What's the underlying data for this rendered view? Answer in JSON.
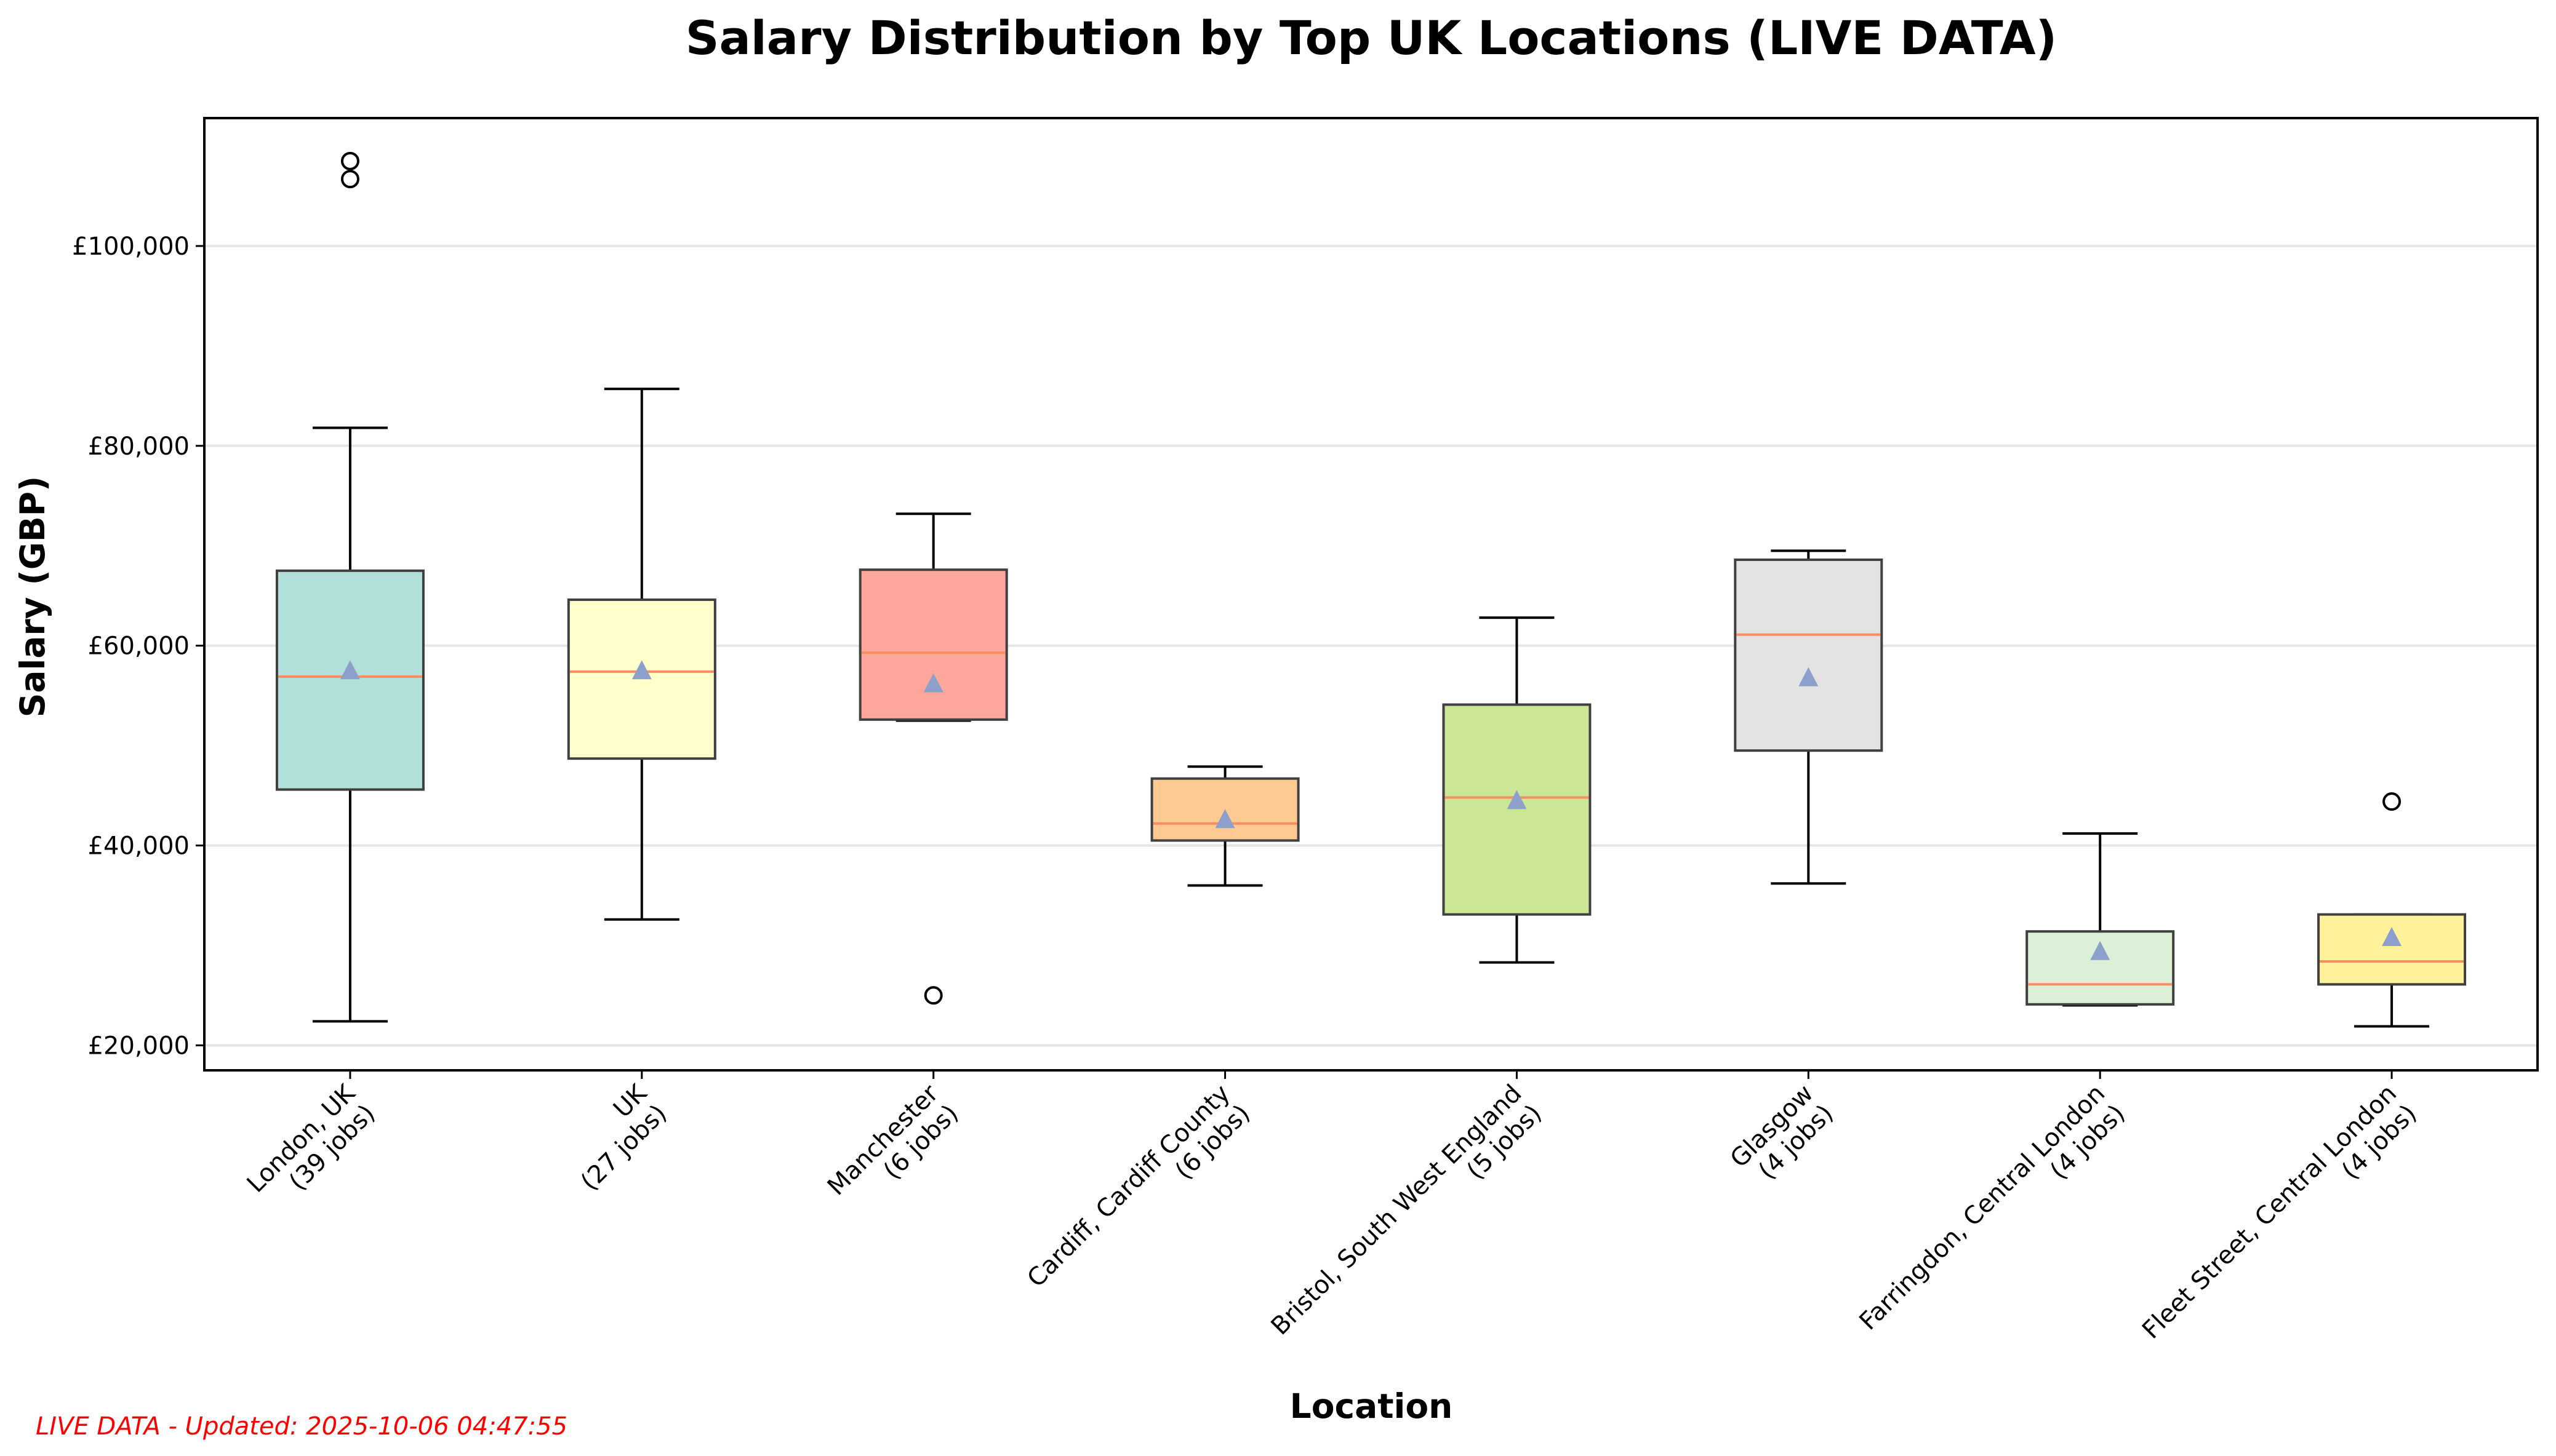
{
  "chart_data": {
    "type": "box",
    "title": "Salary Distribution by Top UK Locations (LIVE DATA)",
    "xlabel": "Location",
    "ylabel": "Salary (GBP)",
    "ylim": [
      17500,
      112800
    ],
    "yticks": [
      20000,
      40000,
      60000,
      80000,
      100000
    ],
    "ytick_labels": [
      "£20,000",
      "£40,000",
      "£60,000",
      "£80,000",
      "£100,000"
    ],
    "grid": "y",
    "mean_marker": "triangle",
    "colors": {
      "median": "#fc8d62",
      "mean": "#8da0cb",
      "box_edge": "#404040",
      "grid": "#e5e5e5",
      "footer": "#ff0000"
    },
    "series": [
      {
        "name": "London, UK",
        "jobs_label": "(39 jobs)",
        "whislo": 22400,
        "q1": 45600,
        "med": 56900,
        "mean": 57500,
        "q3": 67500,
        "whishi": 81800,
        "fliers": [
          106700,
          108500
        ],
        "color": "#b1e0da"
      },
      {
        "name": "UK",
        "jobs_label": "(27 jobs)",
        "whislo": 32600,
        "q1": 48700,
        "med": 57400,
        "mean": 57500,
        "q3": 64600,
        "whishi": 85700,
        "fliers": [],
        "color": "#ffffcc"
      },
      {
        "name": "Manchester",
        "jobs_label": "(6 jobs)",
        "whislo": 52500,
        "q1": 52600,
        "med": 59300,
        "mean": 56200,
        "q3": 67600,
        "whishi": 73200,
        "fliers": [
          25000
        ],
        "color": "#fca69c"
      },
      {
        "name": "Cardiff, Cardiff County",
        "jobs_label": "(6 jobs)",
        "whislo": 36000,
        "q1": 40500,
        "med": 42200,
        "mean": 42600,
        "q3": 46700,
        "whishi": 47900,
        "fliers": [],
        "color": "#fdca91"
      },
      {
        "name": "Bristol, South West England",
        "jobs_label": "(5 jobs)",
        "whislo": 28300,
        "q1": 33100,
        "med": 44800,
        "mean": 44500,
        "q3": 54100,
        "whishi": 62800,
        "fliers": [],
        "color": "#cbe694"
      },
      {
        "name": "Glasgow",
        "jobs_label": "(4 jobs)",
        "whislo": 36200,
        "q1": 49500,
        "med": 61100,
        "mean": 56800,
        "q3": 68600,
        "whishi": 69500,
        "fliers": [],
        "color": "#e3e3e3"
      },
      {
        "name": "Farringdon, Central London",
        "jobs_label": "(4 jobs)",
        "whislo": 24000,
        "q1": 24100,
        "med": 26100,
        "mean": 29400,
        "q3": 31400,
        "whishi": 41200,
        "fliers": [],
        "color": "#dbf0d6"
      },
      {
        "name": "Fleet Street, Central London",
        "jobs_label": "(4 jobs)",
        "whislo": 21900,
        "q1": 26100,
        "med": 28400,
        "mean": 30800,
        "q3": 33100,
        "whishi": 33100,
        "fliers": [
          44400
        ],
        "color": "#fff29a"
      }
    ]
  },
  "footer": {
    "text": "LIVE DATA - Updated: 2025-10-06 04:47:55"
  }
}
